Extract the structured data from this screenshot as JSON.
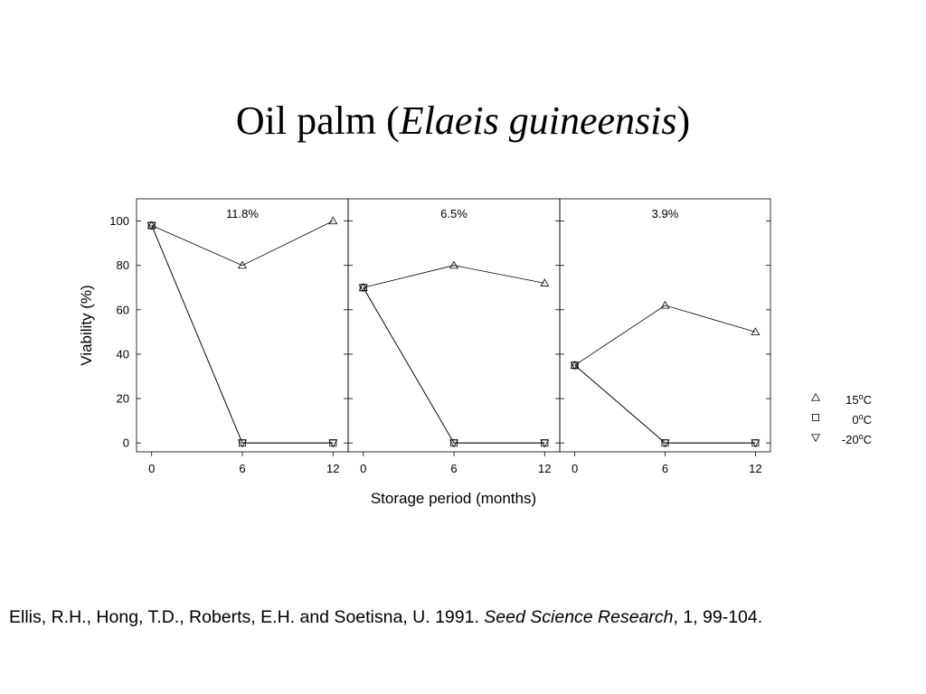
{
  "title": {
    "prefix": "Oil palm (",
    "species": "Elaeis guineensis",
    "suffix": ")"
  },
  "citation": {
    "authors": "Ellis, R.H., Hong, T.D., Roberts, E.H. and Soetisna, U. 1991. ",
    "journal": "Seed Science Research",
    "details": ", 1, 99-104."
  },
  "chart_data": {
    "type": "line",
    "xlabel": "Storage period (months)",
    "ylabel": "Viability (%)",
    "ylim": [
      -4,
      110
    ],
    "xlim": [
      -1,
      13
    ],
    "yticks": [
      0,
      20,
      40,
      60,
      80,
      100
    ],
    "xticks": [
      0,
      6,
      12
    ],
    "grid": false,
    "legend_position": "right",
    "legend": [
      {
        "marker": "triangle-up",
        "base": "15",
        "sup": "o",
        "unit": "C"
      },
      {
        "marker": "square",
        "base": "0",
        "sup": "o",
        "unit": "C"
      },
      {
        "marker": "triangle-down",
        "base": "-20",
        "sup": "o",
        "unit": "C"
      }
    ],
    "panels": [
      {
        "label": "11.8%",
        "series": [
          {
            "marker": "triangle-up",
            "x": [
              0,
              6,
              12
            ],
            "y": [
              98,
              80,
              100
            ]
          },
          {
            "marker": "square",
            "x": [
              0,
              6,
              12
            ],
            "y": [
              98,
              0,
              0
            ]
          },
          {
            "marker": "triangle-down",
            "x": [
              0,
              6,
              12
            ],
            "y": [
              98,
              0,
              0
            ]
          }
        ]
      },
      {
        "label": "6.5%",
        "series": [
          {
            "marker": "triangle-up",
            "x": [
              0,
              6,
              12
            ],
            "y": [
              70,
              80,
              72
            ]
          },
          {
            "marker": "square",
            "x": [
              0,
              6,
              12
            ],
            "y": [
              70,
              0,
              0
            ]
          },
          {
            "marker": "triangle-down",
            "x": [
              0,
              6,
              12
            ],
            "y": [
              70,
              0,
              0
            ]
          }
        ]
      },
      {
        "label": "3.9%",
        "series": [
          {
            "marker": "triangle-up",
            "x": [
              0,
              6,
              12
            ],
            "y": [
              35,
              62,
              50
            ]
          },
          {
            "marker": "square",
            "x": [
              0,
              6,
              12
            ],
            "y": [
              35,
              0,
              0
            ]
          },
          {
            "marker": "triangle-down",
            "x": [
              0,
              6,
              12
            ],
            "y": [
              35,
              0,
              0
            ]
          }
        ]
      }
    ]
  }
}
